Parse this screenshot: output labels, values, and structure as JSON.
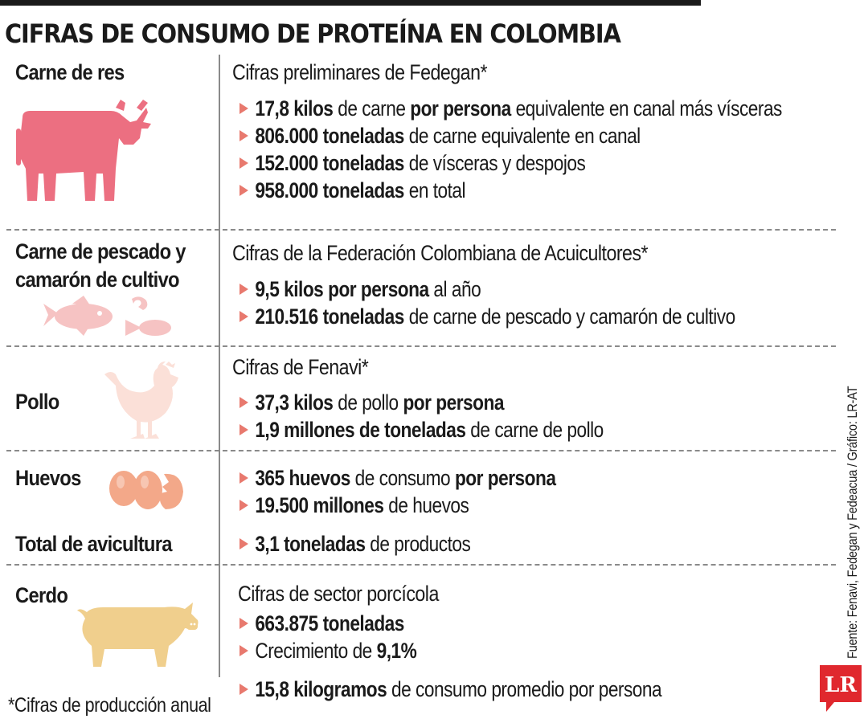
{
  "title": "CIFRAS DE CONSUMO DE PROTEÍNA EN COLOMBIA",
  "colors": {
    "beef": "#ec6f81",
    "fish": "#f6c3c3",
    "chicken": "#fbe0d8",
    "eggs": "#f3a889",
    "pig": "#f0cf8d",
    "bullet": "#e8796e",
    "logo": "#e0282e"
  },
  "sections": {
    "beef": {
      "label": "Carne de res",
      "icon": "cow-icon",
      "subtitle": "Cifras preliminares de Fedegan*",
      "items": [
        {
          "segments": [
            {
              "t": "17,8 kilos",
              "b": true
            },
            {
              "t": " de carne ",
              "b": false
            },
            {
              "t": "por persona",
              "b": true
            },
            {
              "t": " equivalente en canal más vísceras",
              "b": false
            }
          ]
        },
        {
          "segments": [
            {
              "t": "806.000 toneladas",
              "b": true
            },
            {
              "t": " de carne equivalente en canal",
              "b": false
            }
          ]
        },
        {
          "segments": [
            {
              "t": "152.000 toneladas",
              "b": true
            },
            {
              "t": " de vísceras y despojos",
              "b": false
            }
          ]
        },
        {
          "segments": [
            {
              "t": "958.000 toneladas",
              "b": true
            },
            {
              "t": " en total",
              "b": false
            }
          ]
        }
      ]
    },
    "fish": {
      "label_line1": "Carne de pescado y",
      "label_line2": "camarón de cultivo",
      "icon": "fish-shrimp-icon",
      "subtitle": "Cifras de la Federación Colombiana de Acuicultores*",
      "items": [
        {
          "segments": [
            {
              "t": "9,5 kilos por persona",
              "b": true
            },
            {
              "t": " al año",
              "b": false
            }
          ]
        },
        {
          "segments": [
            {
              "t": "210.516 toneladas",
              "b": true
            },
            {
              "t": " de carne de pescado y camarón de cultivo",
              "b": false
            }
          ]
        }
      ]
    },
    "chicken": {
      "label": "Pollo",
      "icon": "hen-icon",
      "subtitle": "Cifras de Fenavi*",
      "items": [
        {
          "segments": [
            {
              "t": "37,3 kilos",
              "b": true
            },
            {
              "t": " de pollo ",
              "b": false
            },
            {
              "t": "por persona",
              "b": true
            }
          ]
        },
        {
          "segments": [
            {
              "t": "1,9 millones de toneladas",
              "b": true
            },
            {
              "t": " de carne de pollo",
              "b": false
            }
          ]
        }
      ]
    },
    "eggs": {
      "label": "Huevos",
      "icon": "eggs-icon",
      "items": [
        {
          "segments": [
            {
              "t": "365 huevos",
              "b": true
            },
            {
              "t": " de consumo ",
              "b": false
            },
            {
              "t": "por persona",
              "b": true
            }
          ]
        },
        {
          "segments": [
            {
              "t": "19.500 millones",
              "b": true
            },
            {
              "t": " de huevos",
              "b": false
            }
          ]
        }
      ]
    },
    "poultry_total": {
      "label": "Total de avicultura",
      "items": [
        {
          "segments": [
            {
              "t": "3,1 toneladas",
              "b": true
            },
            {
              "t": " de productos",
              "b": false
            }
          ]
        }
      ]
    },
    "pork": {
      "label": "Cerdo",
      "icon": "pig-icon",
      "subtitle": "Cifras de sector porcícola",
      "items": [
        {
          "segments": [
            {
              "t": "663.875 toneladas",
              "b": true
            }
          ]
        },
        {
          "segments": [
            {
              "t": "Crecimiento de ",
              "b": false
            },
            {
              "t": "9,1%",
              "b": true
            }
          ]
        }
      ],
      "extra_items": [
        {
          "segments": [
            {
              "t": "15,8 kilogramos",
              "b": true
            },
            {
              "t": " de consumo promedio por persona",
              "b": false
            }
          ]
        }
      ]
    }
  },
  "footnote": "*Cifras de producción anual",
  "credit": "Fuente: Fenavi, Fedegan y Fedeacua / Gráfico: LR-AT",
  "logo_text": "LR"
}
